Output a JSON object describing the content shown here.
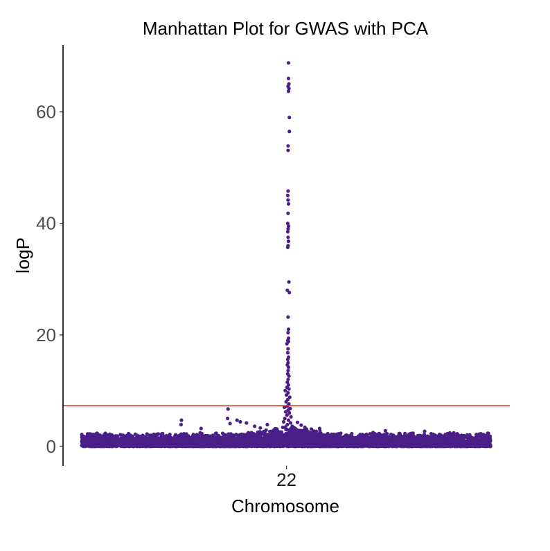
{
  "chart_data": {
    "type": "scatter",
    "title": "Manhattan Plot for GWAS with PCA",
    "xlabel": "Chromosome",
    "ylabel": "logP",
    "x_ticks": [
      "22"
    ],
    "y_ticks": [
      0,
      20,
      40,
      60
    ],
    "ylim": [
      -3.5,
      72
    ],
    "grid": false,
    "legend": "none",
    "point_color": "#4a1f87",
    "threshold": {
      "value": 7.3,
      "color": "#d9452f"
    },
    "series": [
      {
        "chromosome": "22",
        "peak_points": [
          [
            0.506,
            68.8
          ],
          [
            0.506,
            66.0
          ],
          [
            0.507,
            65.0
          ],
          [
            0.505,
            64.6
          ],
          [
            0.507,
            64.2
          ],
          [
            0.506,
            63.7
          ],
          [
            0.508,
            59.0
          ],
          [
            0.508,
            56.5
          ],
          [
            0.505,
            53.9
          ],
          [
            0.505,
            53.1
          ],
          [
            0.505,
            45.8
          ],
          [
            0.504,
            45.0
          ],
          [
            0.505,
            44.2
          ],
          [
            0.506,
            43.5
          ],
          [
            0.505,
            41.8
          ],
          [
            0.504,
            40.0
          ],
          [
            0.506,
            39.5
          ],
          [
            0.505,
            39.0
          ],
          [
            0.504,
            38.5
          ],
          [
            0.505,
            37.5
          ],
          [
            0.506,
            36.8
          ],
          [
            0.505,
            36.0
          ],
          [
            0.504,
            35.7
          ],
          [
            0.507,
            29.5
          ],
          [
            0.503,
            28.0
          ],
          [
            0.508,
            27.6
          ],
          [
            0.505,
            23.2
          ],
          [
            0.506,
            21.0
          ],
          [
            0.505,
            20.4
          ],
          [
            0.506,
            19.4
          ],
          [
            0.504,
            19.0
          ],
          [
            0.502,
            18.4
          ],
          [
            0.506,
            18.8
          ],
          [
            0.505,
            17.5
          ],
          [
            0.504,
            16.8
          ],
          [
            0.506,
            16.0
          ],
          [
            0.504,
            15.6
          ],
          [
            0.505,
            15.0
          ],
          [
            0.503,
            14.6
          ],
          [
            0.506,
            14.2
          ],
          [
            0.505,
            13.6
          ],
          [
            0.504,
            13.0
          ],
          [
            0.507,
            12.6
          ],
          [
            0.505,
            12.0
          ],
          [
            0.503,
            11.5
          ],
          [
            0.506,
            11.0
          ],
          [
            0.502,
            10.6
          ],
          [
            0.507,
            10.3
          ],
          [
            0.498,
            10.0
          ],
          [
            0.505,
            9.6
          ],
          [
            0.501,
            9.2
          ],
          [
            0.509,
            8.8
          ],
          [
            0.504,
            8.4
          ],
          [
            0.5,
            8.0
          ],
          [
            0.507,
            7.6
          ],
          [
            0.503,
            7.2
          ],
          [
            0.496,
            7.0
          ],
          [
            0.51,
            6.8
          ],
          [
            0.505,
            6.5
          ],
          [
            0.499,
            6.2
          ],
          [
            0.508,
            6.0
          ],
          [
            0.502,
            5.6
          ],
          [
            0.512,
            5.3
          ],
          [
            0.497,
            5.0
          ],
          [
            0.506,
            4.7
          ],
          [
            0.494,
            4.4
          ],
          [
            0.511,
            4.2
          ],
          [
            0.503,
            3.9
          ],
          [
            0.515,
            3.6
          ],
          [
            0.492,
            3.4
          ],
          [
            0.5,
            3.1
          ]
        ],
        "secondary_points": [
          [
            0.358,
            6.7
          ],
          [
            0.357,
            5.0
          ],
          [
            0.363,
            4.1
          ],
          [
            0.38,
            4.7
          ],
          [
            0.388,
            4.4
          ],
          [
            0.403,
            4.2
          ],
          [
            0.423,
            3.6
          ],
          [
            0.437,
            3.3
          ],
          [
            0.454,
            3.9
          ],
          [
            0.471,
            3.0
          ],
          [
            0.244,
            4.7
          ],
          [
            0.243,
            3.9
          ],
          [
            0.292,
            3.2
          ],
          [
            0.528,
            4.3
          ],
          [
            0.537,
            3.8
          ],
          [
            0.546,
            3.4
          ],
          [
            0.562,
            3.1
          ],
          [
            0.582,
            3.2
          ],
          [
            0.743,
            2.8
          ],
          [
            0.839,
            2.7
          ]
        ],
        "baseline_max_logP": 2.5,
        "x_span": [
          0.0,
          1.0
        ],
        "gaps": [
          [
            0.078,
            0.082
          ],
          [
            0.088,
            0.094
          ],
          [
            0.121,
            0.124
          ],
          [
            0.128,
            0.131
          ],
          [
            0.15,
            0.153
          ],
          [
            0.189,
            0.191
          ]
        ]
      }
    ]
  }
}
